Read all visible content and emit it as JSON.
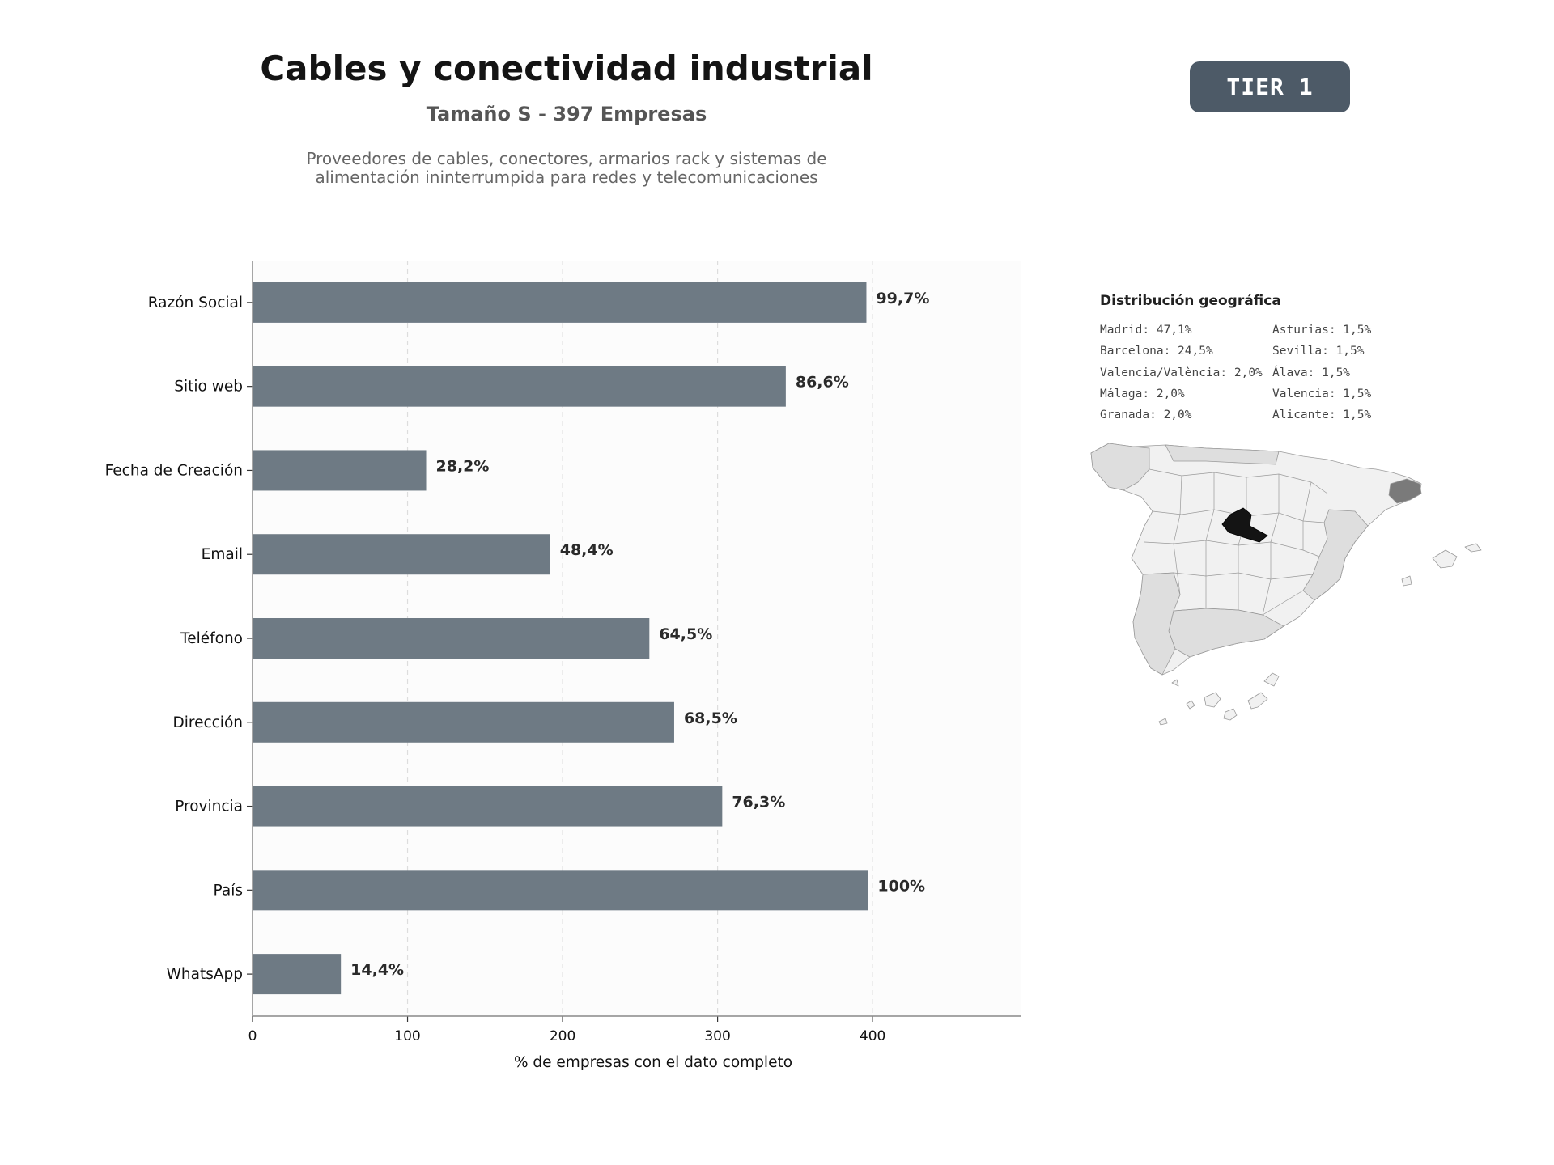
{
  "header": {
    "title": "Cables y conectividad industrial",
    "subtitle": "Tamaño S - 397 Empresas",
    "description_line1": "Proveedores de cables, conectores, armarios rack y sistemas de",
    "description_line2": "alimentación ininterrumpida para redes y telecomunicaciones",
    "tier_badge": "TIER 1"
  },
  "chart_data": {
    "type": "bar",
    "orientation": "horizontal",
    "categories": [
      "Razón Social",
      "Sitio web",
      "Fecha de Creación",
      "Email",
      "Teléfono",
      "Dirección",
      "Provincia",
      "País",
      "WhatsApp"
    ],
    "values": [
      396,
      344,
      112,
      192,
      256,
      272,
      303,
      397,
      57
    ],
    "data_labels": [
      "99,7%",
      "86,6%",
      "28,2%",
      "48,4%",
      "64,5%",
      "68,5%",
      "76,3%",
      "100%",
      "14,4%"
    ],
    "xlabel": "% de empresas con el dato completo",
    "ylabel": "",
    "xlim": [
      0,
      496
    ],
    "x_ticks": [
      "0",
      "100",
      "200",
      "300",
      "400"
    ],
    "grid": "x-dashed",
    "colors": {
      "bar": "#6e7a84",
      "background": "#fcfcfc",
      "label": "#2a2a2a"
    }
  },
  "geo": {
    "title": "Distribución geográfica",
    "column1": [
      "Madrid: 47,1%",
      "Barcelona: 24,5%",
      "Valencia/València: 2,0%",
      "Málaga: 2,0%",
      "Granada: 2,0%"
    ],
    "column2": [
      "Asturias: 1,5%",
      "Sevilla: 1,5%",
      "Álava: 1,5%",
      "Valencia: 1,5%",
      "Alicante: 1,5%"
    ],
    "map_colors": {
      "madrid": "#141414",
      "barcelona": "#7a7a7a",
      "medium": "#dedede",
      "light": "#f1f1f1",
      "stroke": "#9a9a9a"
    }
  }
}
